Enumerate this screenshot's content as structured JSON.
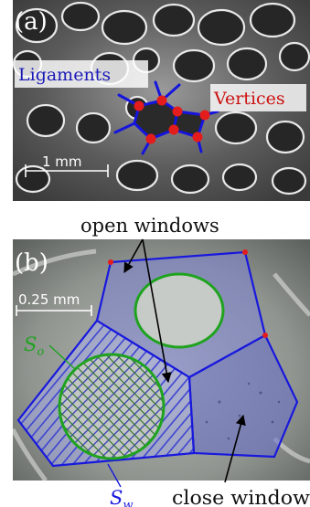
{
  "panel_a": {
    "label": "(a)",
    "ligaments_label": "Ligaments",
    "vertices_label": "Vertices",
    "scale_bar_label": "1 mm",
    "colors": {
      "ligament": "#1515dd",
      "vertex": "#e41c1c",
      "callout_text_blue": "#1a1ab8",
      "callout_text_red": "#cc1111"
    }
  },
  "panel_b": {
    "label": "(b)",
    "scale_bar_label": "0.25 mm",
    "open_windows_label": "open windows",
    "closed_window_label": "close window",
    "s_o_symbol": "S",
    "s_o_subscript": "o",
    "s_w_symbol": "S",
    "s_w_subscript": "w",
    "colors": {
      "window_edge": "#1818dd",
      "open_circle": "#1fa31f",
      "vertex": "#e41c1c",
      "window_fill": "#7d83d6"
    }
  }
}
